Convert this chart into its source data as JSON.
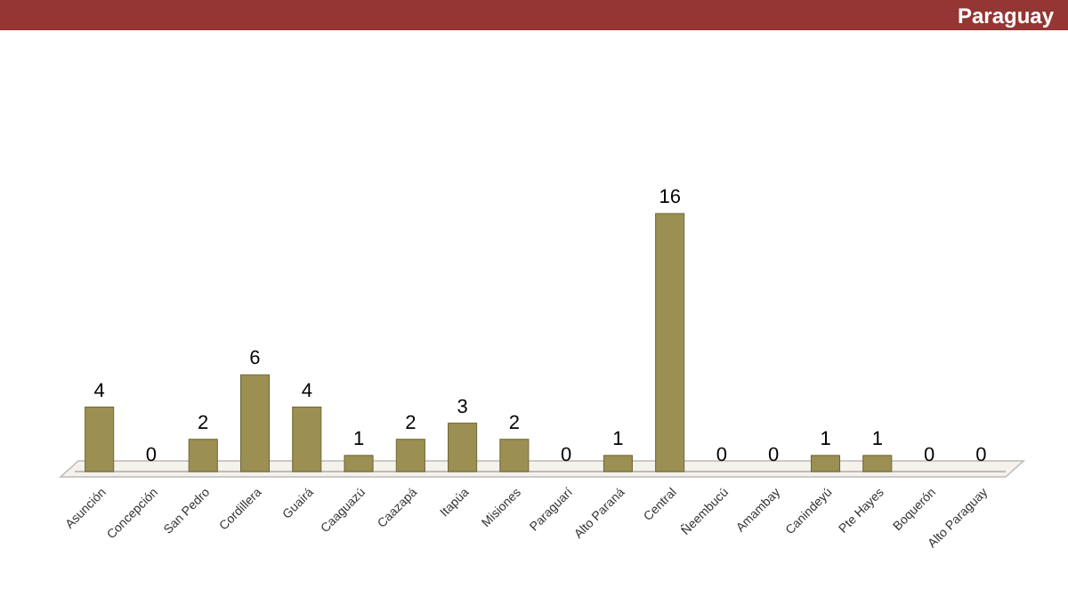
{
  "chart_data": {
    "type": "bar",
    "title": "Paraguay",
    "categories": [
      "Asunción",
      "Concepción",
      "San Pedro",
      "Cordillera",
      "Guairá",
      "Caaguazú",
      "Caazapá",
      "Itapúa",
      "Misiones",
      "Paraguarí",
      "Alto Paraná",
      "Central",
      "Ñeembucú",
      "Amambay",
      "Canindeyú",
      "Pte Hayes",
      "Boquerón",
      "Alto Paraguay"
    ],
    "values": [
      4,
      0,
      2,
      6,
      4,
      1,
      2,
      3,
      2,
      0,
      1,
      16,
      0,
      0,
      1,
      1,
      0,
      0
    ],
    "color": "#9c8f52",
    "data_labels": true
  }
}
